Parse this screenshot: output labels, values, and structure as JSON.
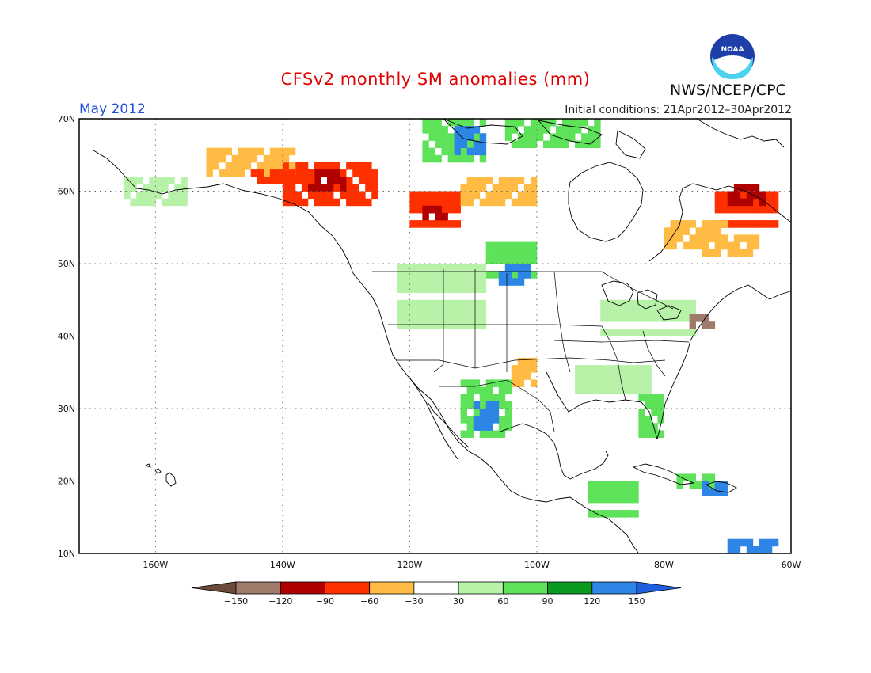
{
  "header": {
    "title": "CFSv2 monthly SM anomalies (mm)",
    "valid_month": "May 2012",
    "initial_conditions": "Initial conditions: 21Apr2012–30Apr2012",
    "agency": "NWS/NCEP/CPC",
    "logo_text": "NOAA",
    "logo_icon": "noaa-logo-icon"
  },
  "map": {
    "lon_range": [
      -172,
      -60
    ],
    "lat_range": [
      10,
      70
    ],
    "lon_labels": [
      {
        "lon": -160,
        "text": "160W"
      },
      {
        "lon": -140,
        "text": "140W"
      },
      {
        "lon": -120,
        "text": "120W"
      },
      {
        "lon": -100,
        "text": "100W"
      },
      {
        "lon": -80,
        "text": "80W"
      },
      {
        "lon": -60,
        "text": "60W"
      }
    ],
    "lat_labels": [
      {
        "lat": 70,
        "text": "70N"
      },
      {
        "lat": 60,
        "text": "60N"
      },
      {
        "lat": 50,
        "text": "50N"
      },
      {
        "lat": 40,
        "text": "40N"
      },
      {
        "lat": 30,
        "text": "30N"
      },
      {
        "lat": 20,
        "text": "20N"
      },
      {
        "lat": 10,
        "text": "10N"
      }
    ],
    "gridlines": "dotted",
    "cell_deg": 1,
    "anomaly_regions": [
      {
        "lon": [
          -140,
          -125
        ],
        "lat": [
          58,
          64
        ],
        "category": "m90_60"
      },
      {
        "lon": [
          -137,
          -130
        ],
        "lat": [
          60,
          63
        ],
        "category": "m120_90"
      },
      {
        "lon": [
          -120,
          -112
        ],
        "lat": [
          55,
          60
        ],
        "category": "m90_60"
      },
      {
        "lon": [
          -118,
          -114
        ],
        "lat": [
          56,
          58
        ],
        "category": "m120_90"
      },
      {
        "lon": [
          -112,
          -100
        ],
        "lat": [
          58,
          62
        ],
        "category": "m60_30"
      },
      {
        "lon": [
          -152,
          -138
        ],
        "lat": [
          62,
          66
        ],
        "category": "m60_30"
      },
      {
        "lon": [
          -145,
          -135
        ],
        "lat": [
          61,
          63
        ],
        "category": "m90_60"
      },
      {
        "lon": [
          -108,
          -100
        ],
        "lat": [
          48,
          53
        ],
        "category": "p60_90"
      },
      {
        "lon": [
          -106,
          -101
        ],
        "lat": [
          47,
          50
        ],
        "category": "p120_150"
      },
      {
        "lon": [
          -118,
          -108
        ],
        "lat": [
          64,
          70
        ],
        "category": "p60_90"
      },
      {
        "lon": [
          -113,
          -108
        ],
        "lat": [
          65,
          69
        ],
        "category": "p120_150"
      },
      {
        "lon": [
          -105,
          -90
        ],
        "lat": [
          66,
          70
        ],
        "category": "p60_90"
      },
      {
        "lon": [
          -72,
          -62
        ],
        "lat": [
          55,
          60
        ],
        "category": "m90_60"
      },
      {
        "lon": [
          -70,
          -64
        ],
        "lat": [
          58,
          61
        ],
        "category": "m120_90"
      },
      {
        "lon": [
          -80,
          -70
        ],
        "lat": [
          52,
          56
        ],
        "category": "m60_30"
      },
      {
        "lon": [
          -74,
          -65
        ],
        "lat": [
          51,
          54
        ],
        "category": "m60_30"
      },
      {
        "lon": [
          -122,
          -108
        ],
        "lat": [
          40,
          50
        ],
        "category": "p30_60"
      },
      {
        "lon": [
          -112,
          -104
        ],
        "lat": [
          26,
          34
        ],
        "category": "p60_90"
      },
      {
        "lon": [
          -110,
          -106
        ],
        "lat": [
          27,
          31
        ],
        "category": "p120_150"
      },
      {
        "lon": [
          -104,
          -100
        ],
        "lat": [
          33,
          37
        ],
        "category": "m60_30"
      },
      {
        "lon": [
          -84,
          -80
        ],
        "lat": [
          26,
          32
        ],
        "category": "p60_90"
      },
      {
        "lon": [
          -94,
          -82
        ],
        "lat": [
          31,
          36
        ],
        "category": "p30_60"
      },
      {
        "lon": [
          -92,
          -84
        ],
        "lat": [
          15,
          20
        ],
        "category": "p60_90"
      },
      {
        "lon": [
          -78,
          -72
        ],
        "lat": [
          19,
          21
        ],
        "category": "p60_90"
      },
      {
        "lon": [
          -74,
          -70
        ],
        "lat": [
          18,
          20
        ],
        "category": "p120_150"
      },
      {
        "lon": [
          -70,
          -62
        ],
        "lat": [
          10,
          12
        ],
        "category": "p120_150"
      },
      {
        "lon": [
          -165,
          -155
        ],
        "lat": [
          58,
          62
        ],
        "category": "p30_60"
      },
      {
        "lon": [
          -90,
          -75
        ],
        "lat": [
          40,
          45
        ],
        "category": "p30_60"
      },
      {
        "lon": [
          -76,
          -72
        ],
        "lat": [
          41,
          43
        ],
        "category": "m150_120"
      }
    ]
  },
  "legend": {
    "categories": [
      {
        "key": "lt_m150",
        "color": "#6b4a3a"
      },
      {
        "key": "m150_120",
        "color": "#a07a6a"
      },
      {
        "key": "m120_90",
        "color": "#b00000"
      },
      {
        "key": "m90_60",
        "color": "#ff3000"
      },
      {
        "key": "m60_30",
        "color": "#ffbb44"
      },
      {
        "key": "m30_30",
        "color": "#ffffff"
      },
      {
        "key": "p30_60",
        "color": "#b8f2a8"
      },
      {
        "key": "p60_90",
        "color": "#5ee25a"
      },
      {
        "key": "p90_120",
        "color": "#0a9a20"
      },
      {
        "key": "p120_150",
        "color": "#2d86e6"
      },
      {
        "key": "gt_150",
        "color": "#2060e0"
      }
    ],
    "tick_labels": [
      "−150",
      "−120",
      "−90",
      "−60",
      "−30",
      "30",
      "60",
      "90",
      "120",
      "150"
    ]
  }
}
